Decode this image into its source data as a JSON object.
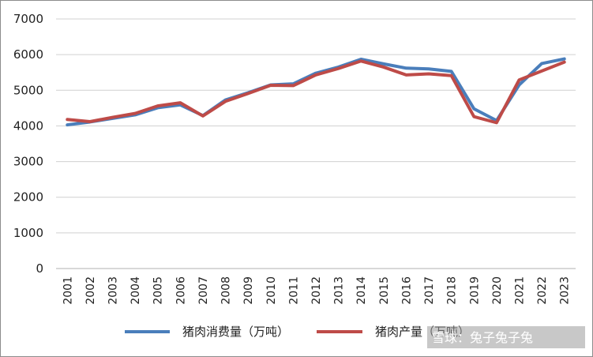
{
  "chart_data": {
    "type": "line",
    "categories": [
      "2001",
      "2002",
      "2003",
      "2004",
      "2005",
      "2006",
      "2007",
      "2008",
      "2009",
      "2010",
      "2011",
      "2012",
      "2013",
      "2014",
      "2015",
      "2016",
      "2017",
      "2018",
      "2019",
      "2020",
      "2021",
      "2022",
      "2023"
    ],
    "series": [
      {
        "name": "猪肉消费量（万吨）",
        "color": "#4a7ebb",
        "values": [
          4030,
          4110,
          4210,
          4310,
          4510,
          4590,
          4290,
          4730,
          4930,
          5150,
          5180,
          5480,
          5650,
          5870,
          5740,
          5620,
          5600,
          5530,
          4480,
          4150,
          5150,
          5750,
          5880
        ]
      },
      {
        "name": "猪肉产量（万吨）",
        "color": "#be4b48",
        "values": [
          4180,
          4120,
          4240,
          4350,
          4560,
          4650,
          4280,
          4690,
          4910,
          5140,
          5130,
          5430,
          5610,
          5820,
          5650,
          5430,
          5460,
          5410,
          4260,
          4090,
          5290,
          5540,
          5790
        ]
      }
    ],
    "ylim": [
      0,
      7000
    ],
    "yticks": [
      0,
      1000,
      2000,
      3000,
      4000,
      5000,
      6000,
      7000
    ],
    "grid": true,
    "legend_position": "bottom",
    "title": "",
    "xlabel": "",
    "ylabel": ""
  },
  "legend": {
    "consumption_label": "猪肉消费量（万吨）",
    "production_label": "猪肉产量（万吨）"
  },
  "watermark": {
    "text": "雪球：兔子兔子兔"
  }
}
